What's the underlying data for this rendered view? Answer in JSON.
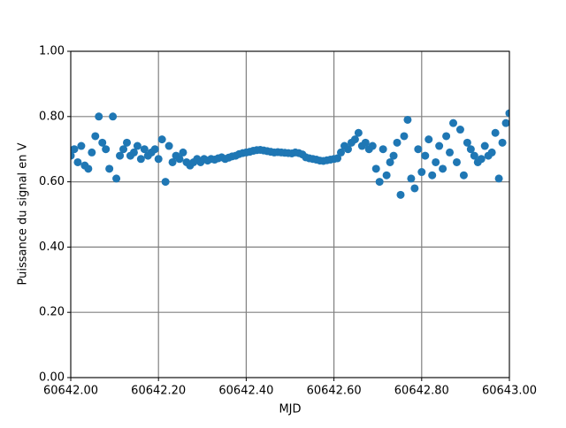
{
  "chart_data": {
    "type": "scatter",
    "xlabel": "MJD",
    "ylabel": "Puissance du signal en V",
    "color": "#1f77b4",
    "grid": true,
    "xlim": [
      60642,
      60643
    ],
    "ylim": [
      0,
      1
    ],
    "xticks": [
      {
        "value": 60642,
        "label": "60642.00"
      },
      {
        "value": 60642.2,
        "label": "60642.20"
      },
      {
        "value": 60642.4,
        "label": "60642.40"
      },
      {
        "value": 60642.6,
        "label": "60642.60"
      },
      {
        "value": 60642.8,
        "label": "60642.80"
      },
      {
        "value": 60643,
        "label": "60643.00"
      }
    ],
    "yticks": [
      {
        "value": 0,
        "label": "0.00"
      },
      {
        "value": 0.2,
        "label": "0.20"
      },
      {
        "value": 0.4,
        "label": "0.40"
      },
      {
        "value": 0.6,
        "label": "0.60"
      },
      {
        "value": 0.8,
        "label": "0.80"
      },
      {
        "value": 1,
        "label": "1.00"
      }
    ],
    "x": [
      60642.0,
      60642.008,
      60642.016,
      60642.024,
      60642.032,
      60642.04,
      60642.048,
      60642.056,
      60642.064,
      60642.072,
      60642.08,
      60642.088,
      60642.096,
      60642.104,
      60642.112,
      60642.12,
      60642.128,
      60642.136,
      60642.144,
      60642.152,
      60642.16,
      60642.168,
      60642.176,
      60642.184,
      60642.192,
      60642.2,
      60642.208,
      60642.216,
      60642.224,
      60642.232,
      60642.24,
      60642.248,
      60642.256,
      60642.264,
      60642.272,
      60642.28,
      60642.288,
      60642.296,
      60642.304,
      60642.312,
      60642.32,
      60642.328,
      60642.336,
      60642.344,
      60642.352,
      60642.36,
      60642.368,
      60642.376,
      60642.384,
      60642.392,
      60642.4,
      60642.408,
      60642.416,
      60642.424,
      60642.432,
      60642.44,
      60642.448,
      60642.456,
      60642.464,
      60642.472,
      60642.48,
      60642.488,
      60642.496,
      60642.504,
      60642.512,
      60642.52,
      60642.528,
      60642.536,
      60642.544,
      60642.552,
      60642.56,
      60642.568,
      60642.576,
      60642.584,
      60642.592,
      60642.6,
      60642.608,
      60642.616,
      60642.624,
      60642.632,
      60642.64,
      60642.648,
      60642.656,
      60642.664,
      60642.672,
      60642.68,
      60642.688,
      60642.696,
      60642.704,
      60642.712,
      60642.72,
      60642.728,
      60642.736,
      60642.744,
      60642.752,
      60642.76,
      60642.768,
      60642.776,
      60642.784,
      60642.792,
      60642.8,
      60642.808,
      60642.816,
      60642.824,
      60642.832,
      60642.84,
      60642.848,
      60642.856,
      60642.864,
      60642.872,
      60642.88,
      60642.888,
      60642.896,
      60642.904,
      60642.912,
      60642.92,
      60642.928,
      60642.936,
      60642.944,
      60642.952,
      60642.96,
      60642.968,
      60642.976,
      60642.984,
      60642.992,
      60643.0
    ],
    "values": [
      0.68,
      0.7,
      0.66,
      0.71,
      0.65,
      0.64,
      0.69,
      0.74,
      0.8,
      0.72,
      0.7,
      0.64,
      0.8,
      0.61,
      0.68,
      0.7,
      0.72,
      0.68,
      0.69,
      0.71,
      0.67,
      0.7,
      0.68,
      0.69,
      0.7,
      0.67,
      0.73,
      0.6,
      0.71,
      0.66,
      0.68,
      0.67,
      0.69,
      0.66,
      0.65,
      0.66,
      0.67,
      0.66,
      0.67,
      0.665,
      0.67,
      0.668,
      0.672,
      0.675,
      0.67,
      0.674,
      0.678,
      0.68,
      0.685,
      0.688,
      0.69,
      0.692,
      0.695,
      0.697,
      0.698,
      0.696,
      0.694,
      0.692,
      0.69,
      0.691,
      0.69,
      0.689,
      0.688,
      0.687,
      0.69,
      0.688,
      0.684,
      0.675,
      0.672,
      0.67,
      0.668,
      0.665,
      0.664,
      0.666,
      0.668,
      0.67,
      0.672,
      0.69,
      0.71,
      0.7,
      0.72,
      0.73,
      0.75,
      0.71,
      0.72,
      0.7,
      0.71,
      0.64,
      0.6,
      0.7,
      0.62,
      0.66,
      0.68,
      0.72,
      0.56,
      0.74,
      0.79,
      0.61,
      0.58,
      0.7,
      0.63,
      0.68,
      0.73,
      0.62,
      0.66,
      0.71,
      0.64,
      0.74,
      0.69,
      0.78,
      0.66,
      0.76,
      0.62,
      0.72,
      0.7,
      0.68,
      0.66,
      0.67,
      0.71,
      0.68,
      0.69,
      0.75,
      0.61,
      0.72,
      0.78,
      0.81
    ]
  }
}
